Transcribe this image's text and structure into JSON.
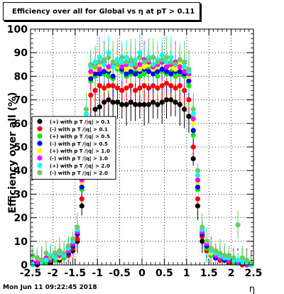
{
  "title": "Efficiency over all for Global vs   η at pT > 0.11",
  "timestamp": "Mon Jun 11 09:22:45 2018",
  "colors": {
    "black": "#000000",
    "red": "#ff0000",
    "green": "#00ee00",
    "blue": "#0000ff",
    "yellow": "#ffff00",
    "magenta": "#ff00ff",
    "cyan": "#00ffff",
    "olive": "#66cc66"
  },
  "chart_data": {
    "type": "scatter",
    "title": "Efficiency over all for Global vs   η at pT > 0.11",
    "xlabel": "η",
    "ylabel": "Efficiency over all (%)",
    "xlim": [
      -2.5,
      2.5
    ],
    "ylim": [
      0,
      100
    ],
    "x_ticks": [
      -2.5,
      -2,
      -1.5,
      -1,
      -0.5,
      0,
      0.5,
      1,
      1.5,
      2,
      2.5
    ],
    "x_tick_labels": [
      "-2.5",
      "-2",
      "-1.5",
      "-1",
      "-0.5",
      "0",
      "0.5",
      "1",
      "1.5",
      "2",
      "2.5"
    ],
    "y_ticks": [
      0,
      10,
      20,
      30,
      40,
      50,
      60,
      70,
      80,
      90,
      100
    ],
    "y_tick_labels": [
      "0",
      "10",
      "20",
      "30",
      "40",
      "50",
      "60",
      "70",
      "80",
      "90",
      "100"
    ],
    "grid": true,
    "legend_position": "left-middle",
    "x": [
      -2.45,
      -2.35,
      -2.25,
      -2.15,
      -2.05,
      -1.95,
      -1.85,
      -1.75,
      -1.65,
      -1.55,
      -1.45,
      -1.35,
      -1.25,
      -1.15,
      -1.05,
      -0.95,
      -0.85,
      -0.75,
      -0.65,
      -0.55,
      -0.45,
      -0.35,
      -0.25,
      -0.15,
      -0.05,
      0.05,
      0.15,
      0.25,
      0.35,
      0.45,
      0.55,
      0.65,
      0.75,
      0.85,
      0.95,
      1.05,
      1.15,
      1.25,
      1.35,
      1.45,
      1.55,
      1.65,
      1.75,
      1.85,
      1.95,
      2.05,
      2.15,
      2.25,
      2.35,
      2.45
    ],
    "series": [
      {
        "name": "(+) with p T /|q| > 0.1",
        "color": "#000000",
        "marker": "circle",
        "values": [
          0,
          0,
          1,
          1,
          1,
          2,
          2,
          3,
          4,
          6,
          10,
          25,
          45,
          62,
          66,
          67,
          69,
          70,
          69,
          69,
          68,
          68,
          69,
          68,
          68,
          68,
          68,
          69,
          68,
          69,
          70,
          70,
          69,
          68,
          66,
          63,
          45,
          25,
          10,
          6,
          4,
          3,
          2,
          2,
          1,
          1,
          1,
          0,
          0,
          0
        ]
      },
      {
        "name": "(-) with p T /|q| > 0.1",
        "color": "#ff0000",
        "marker": "circle",
        "values": [
          0,
          1,
          1,
          1,
          2,
          2,
          3,
          3,
          4,
          7,
          11,
          28,
          50,
          72,
          74,
          76,
          75,
          76,
          76,
          75,
          74,
          75,
          76,
          74,
          75,
          76,
          75,
          76,
          75,
          76,
          77,
          76,
          75,
          76,
          74,
          70,
          50,
          28,
          12,
          6,
          4,
          3,
          2,
          2,
          1,
          1,
          1,
          0,
          1,
          0
        ]
      },
      {
        "name": "(+) with p T /|q| > 0.5",
        "color": "#00ee00",
        "marker": "circle",
        "values": [
          1,
          2,
          2,
          1,
          3,
          2,
          4,
          3,
          5,
          8,
          13,
          32,
          55,
          78,
          80,
          82,
          81,
          80,
          79,
          83,
          82,
          80,
          81,
          82,
          80,
          81,
          83,
          82,
          80,
          82,
          81,
          82,
          80,
          81,
          80,
          76,
          55,
          32,
          13,
          7,
          4,
          3,
          3,
          2,
          2,
          1,
          1,
          1,
          0,
          1
        ]
      },
      {
        "name": "(-) with p T /|q| > 0.5",
        "color": "#0000ff",
        "marker": "circle",
        "values": [
          0,
          1,
          2,
          2,
          2,
          3,
          3,
          4,
          5,
          8,
          13,
          33,
          57,
          79,
          81,
          81,
          82,
          82,
          80,
          84,
          83,
          81,
          82,
          81,
          82,
          83,
          82,
          81,
          82,
          83,
          82,
          81,
          82,
          82,
          81,
          78,
          57,
          33,
          13,
          8,
          5,
          3,
          3,
          2,
          2,
          2,
          1,
          1,
          0,
          0
        ]
      },
      {
        "name": "(+) with p T /|q| > 1.0",
        "color": "#ffff00",
        "marker": "circle",
        "values": [
          0,
          2,
          1,
          3,
          2,
          4,
          3,
          5,
          6,
          9,
          14,
          35,
          60,
          81,
          83,
          84,
          85,
          83,
          86,
          84,
          85,
          83,
          84,
          86,
          83,
          84,
          85,
          83,
          84,
          86,
          85,
          84,
          83,
          85,
          83,
          80,
          60,
          35,
          14,
          9,
          5,
          4,
          3,
          3,
          2,
          2,
          1,
          1,
          1,
          0
        ]
      },
      {
        "name": "(-) with p T /|q| > 1.0",
        "color": "#ff00ff",
        "marker": "circle",
        "values": [
          1,
          1,
          2,
          3,
          2,
          3,
          4,
          4,
          6,
          9,
          14,
          36,
          62,
          82,
          85,
          83,
          86,
          84,
          85,
          87,
          84,
          85,
          86,
          84,
          85,
          87,
          86,
          84,
          85,
          86,
          84,
          85,
          86,
          84,
          82,
          81,
          62,
          36,
          14,
          9,
          6,
          4,
          3,
          3,
          2,
          2,
          1,
          1,
          0,
          1
        ]
      },
      {
        "name": "(+) with p T /|q| > 2.0",
        "color": "#00ffff",
        "marker": "circle",
        "values": [
          0,
          3,
          1,
          2,
          4,
          3,
          5,
          4,
          7,
          10,
          15,
          38,
          64,
          84,
          86,
          88,
          85,
          90,
          84,
          87,
          86,
          88,
          85,
          87,
          90,
          86,
          88,
          85,
          87,
          89,
          86,
          88,
          85,
          87,
          84,
          82,
          64,
          38,
          15,
          10,
          6,
          5,
          4,
          3,
          3,
          2,
          2,
          1,
          1,
          0
        ]
      },
      {
        "name": "(-) with p T /|q| > 2.0",
        "color": "#66cc66",
        "marker": "circle",
        "values": [
          4,
          3,
          2,
          5,
          3,
          5,
          6,
          5,
          8,
          11,
          16,
          40,
          66,
          85,
          84,
          86,
          87,
          88,
          86,
          85,
          88,
          86,
          87,
          85,
          88,
          86,
          87,
          88,
          86,
          87,
          88,
          86,
          85,
          87,
          86,
          83,
          66,
          40,
          16,
          10,
          7,
          6,
          5,
          4,
          4,
          3,
          17,
          3,
          2,
          1
        ]
      }
    ]
  }
}
